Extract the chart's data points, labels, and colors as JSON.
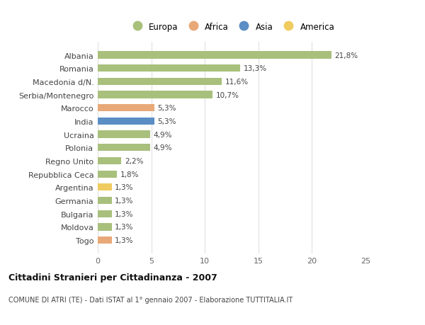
{
  "countries": [
    "Albania",
    "Romania",
    "Macedonia d/N.",
    "Serbia/Montenegro",
    "Marocco",
    "India",
    "Ucraina",
    "Polonia",
    "Regno Unito",
    "Repubblica Ceca",
    "Argentina",
    "Germania",
    "Bulgaria",
    "Moldova",
    "Togo"
  ],
  "values": [
    21.8,
    13.3,
    11.6,
    10.7,
    5.3,
    5.3,
    4.9,
    4.9,
    2.2,
    1.8,
    1.3,
    1.3,
    1.3,
    1.3,
    1.3
  ],
  "labels": [
    "21,8%",
    "13,3%",
    "11,6%",
    "10,7%",
    "5,3%",
    "5,3%",
    "4,9%",
    "4,9%",
    "2,2%",
    "1,8%",
    "1,3%",
    "1,3%",
    "1,3%",
    "1,3%",
    "1,3%"
  ],
  "continents": [
    "Europa",
    "Europa",
    "Europa",
    "Europa",
    "Africa",
    "Asia",
    "Europa",
    "Europa",
    "Europa",
    "Europa",
    "America",
    "Europa",
    "Europa",
    "Europa",
    "Africa"
  ],
  "colors": {
    "Europa": "#a8c07c",
    "Africa": "#e8a878",
    "Asia": "#5b8ec4",
    "America": "#f0cc60"
  },
  "legend_order": [
    "Europa",
    "Africa",
    "Asia",
    "America"
  ],
  "title": "Cittadini Stranieri per Cittadinanza - 2007",
  "subtitle": "COMUNE DI ATRI (TE) - Dati ISTAT al 1° gennaio 2007 - Elaborazione TUTTITALIA.IT",
  "xlim": [
    0,
    25
  ],
  "xticks": [
    0,
    5,
    10,
    15,
    20,
    25
  ],
  "background_color": "#ffffff",
  "grid_color": "#e0e0e0",
  "bar_height": 0.55
}
